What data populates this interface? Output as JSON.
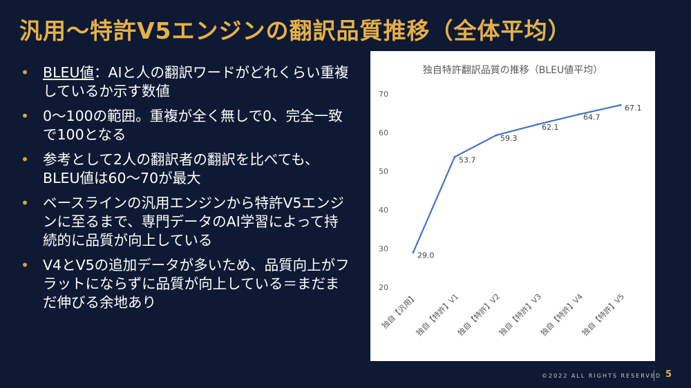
{
  "slide": {
    "title": "汎用〜特許V5エンジンの翻訳品質推移（全体平均）",
    "bullets": [
      {
        "lead": "BLEU値",
        "text": "：AIと人の翻訳ワードがどれくらい重複しているか示す数値"
      },
      {
        "lead": "",
        "text": "0〜100の範囲。重複が全く無しで0、完全一致で100となる"
      },
      {
        "lead": "",
        "text": "参考として2人の翻訳者の翻訳を比べても、BLEU値は60〜70が最大"
      },
      {
        "lead": "",
        "text": "ベースラインの汎用エンジンから特許V5エンジンに至るまで、専門データのAI学習によって持続的に品質が向上している"
      },
      {
        "lead": "",
        "text": "V4とV5の追加データが多いため、品質向上がフラットにならずに品質が向上している＝まだまだ伸びる余地あり"
      }
    ],
    "bullet_symbol": "•",
    "footer": "©2022 ALL RIGHTS RESERVED",
    "page_number": "5"
  },
  "chart_data": {
    "type": "line",
    "title": "独自特許翻訳品質の推移（BLEU値平均）",
    "categories": [
      "独自【汎用】",
      "独自【特許】V1",
      "独自【特許】V2",
      "独自【特許】V3",
      "独自【特許】V4",
      "独自【特許】V5"
    ],
    "values": [
      29.0,
      53.7,
      59.3,
      62.1,
      64.7,
      67.1
    ],
    "data_labels": [
      "29.0",
      "53.7",
      "59.3",
      "62.1",
      "64.7",
      "67.1"
    ],
    "yticks": [
      "20",
      "30",
      "40",
      "50",
      "60",
      "70"
    ],
    "ylim": [
      20,
      70
    ],
    "line_color": "#4472c4",
    "grid": false,
    "legend": "none"
  }
}
